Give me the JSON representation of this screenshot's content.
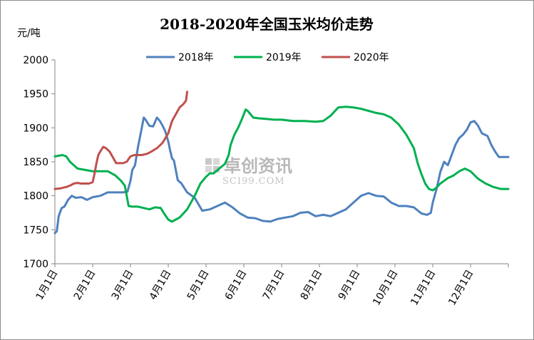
{
  "chart_data": {
    "type": "line",
    "title": "2018-2020年全国玉米均价走势",
    "unit_label": "元/吨",
    "ylim": [
      1700,
      2000
    ],
    "yticks": [
      1700,
      1750,
      1800,
      1850,
      1900,
      1950,
      2000
    ],
    "xlim": [
      0,
      12
    ],
    "xtick_labels": [
      "1月1日",
      "2月1日",
      "3月1日",
      "4月1日",
      "5月1日",
      "6月1日",
      "7月1日",
      "8月1日",
      "9月1日",
      "10月1日",
      "11月1日",
      "12月1日"
    ],
    "legend_position": "top",
    "grid": false,
    "watermark": {
      "cn": "卓创资讯",
      "en": "SCI99.COM"
    },
    "series": [
      {
        "name": "2018年",
        "color": "#4f81bd",
        "x": [
          0,
          0.05,
          0.1,
          0.18,
          0.25,
          0.35,
          0.45,
          0.55,
          0.7,
          0.85,
          1.0,
          1.2,
          1.4,
          1.6,
          1.8,
          1.92,
          2.0,
          2.05,
          2.12,
          2.2,
          2.3,
          2.35,
          2.4,
          2.5,
          2.6,
          2.7,
          2.78,
          2.85,
          2.92,
          3.0,
          3.05,
          3.1,
          3.15,
          3.25,
          3.35,
          3.5,
          3.7,
          3.9,
          4.1,
          4.3,
          4.5,
          4.7,
          4.9,
          5.1,
          5.3,
          5.5,
          5.7,
          5.9,
          6.1,
          6.3,
          6.5,
          6.7,
          6.9,
          7.1,
          7.3,
          7.5,
          7.7,
          7.9,
          8.1,
          8.3,
          8.5,
          8.7,
          8.9,
          9.1,
          9.3,
          9.5,
          9.7,
          9.85,
          9.95,
          10.0,
          10.1,
          10.2,
          10.3,
          10.4,
          10.5,
          10.6,
          10.7,
          10.8,
          10.9,
          11.0,
          11.1,
          11.2,
          11.3,
          11.45,
          11.55,
          11.65,
          11.75,
          11.85,
          11.92,
          12.0
        ],
        "values": [
          1745,
          1748,
          1770,
          1782,
          1784,
          1794,
          1800,
          1797,
          1798,
          1794,
          1798,
          1800,
          1805,
          1805,
          1805,
          1806,
          1822,
          1838,
          1845,
          1872,
          1900,
          1915,
          1912,
          1903,
          1902,
          1915,
          1910,
          1903,
          1895,
          1880,
          1867,
          1855,
          1852,
          1823,
          1818,
          1805,
          1797,
          1778,
          1780,
          1785,
          1790,
          1783,
          1774,
          1768,
          1767,
          1763,
          1762,
          1766,
          1768,
          1770,
          1775,
          1776,
          1770,
          1772,
          1770,
          1775,
          1780,
          1790,
          1800,
          1804,
          1800,
          1799,
          1790,
          1785,
          1785,
          1783,
          1774,
          1772,
          1775,
          1790,
          1810,
          1835,
          1850,
          1845,
          1860,
          1875,
          1885,
          1890,
          1897,
          1908,
          1910,
          1903,
          1892,
          1888,
          1875,
          1865,
          1857,
          1857,
          1857,
          1857
        ]
      },
      {
        "name": "2019年",
        "color": "#00b050",
        "x": [
          0,
          0.2,
          0.3,
          0.4,
          0.5,
          0.6,
          0.8,
          1.0,
          1.2,
          1.4,
          1.6,
          1.75,
          1.85,
          1.95,
          2.05,
          2.2,
          2.35,
          2.5,
          2.65,
          2.8,
          2.9,
          3.0,
          3.1,
          3.2,
          3.3,
          3.5,
          3.7,
          3.85,
          4.0,
          4.1,
          4.2,
          4.35,
          4.5,
          4.6,
          4.65,
          4.75,
          4.85,
          4.95,
          5.05,
          5.1,
          5.25,
          5.4,
          5.6,
          5.8,
          6.0,
          6.3,
          6.6,
          6.9,
          7.1,
          7.3,
          7.5,
          7.7,
          7.9,
          8.1,
          8.3,
          8.5,
          8.7,
          8.9,
          9.1,
          9.3,
          9.5,
          9.6,
          9.7,
          9.8,
          9.9,
          10.0,
          10.1,
          10.2,
          10.3,
          10.4,
          10.55,
          10.7,
          10.85,
          11.0,
          11.2,
          11.4,
          11.6,
          11.8,
          12.0
        ],
        "values": [
          1858,
          1860,
          1858,
          1850,
          1845,
          1840,
          1838,
          1836,
          1836,
          1836,
          1830,
          1822,
          1815,
          1785,
          1784,
          1784,
          1782,
          1780,
          1783,
          1782,
          1773,
          1765,
          1762,
          1765,
          1768,
          1780,
          1800,
          1818,
          1828,
          1833,
          1833,
          1840,
          1847,
          1860,
          1875,
          1890,
          1900,
          1913,
          1927,
          1925,
          1915,
          1914,
          1913,
          1912,
          1912,
          1910,
          1910,
          1909,
          1910,
          1918,
          1930,
          1931,
          1930,
          1928,
          1925,
          1922,
          1920,
          1915,
          1905,
          1890,
          1870,
          1848,
          1832,
          1818,
          1810,
          1808,
          1812,
          1818,
          1822,
          1826,
          1830,
          1836,
          1840,
          1836,
          1825,
          1818,
          1813,
          1810,
          1810
        ]
      },
      {
        "name": "2020年",
        "color": "#c0504d",
        "x": [
          0,
          0.15,
          0.3,
          0.4,
          0.5,
          0.6,
          0.7,
          0.8,
          0.9,
          1.0,
          1.05,
          1.1,
          1.15,
          1.2,
          1.28,
          1.35,
          1.45,
          1.55,
          1.62,
          1.7,
          1.8,
          1.9,
          2.0,
          2.1,
          2.2,
          2.3,
          2.45,
          2.55,
          2.7,
          2.85,
          3.0,
          3.1,
          3.2,
          3.3,
          3.4,
          3.47,
          3.5
        ],
        "values": [
          1810,
          1811,
          1813,
          1815,
          1818,
          1819,
          1818,
          1818,
          1818,
          1820,
          1833,
          1848,
          1860,
          1865,
          1872,
          1870,
          1865,
          1855,
          1848,
          1848,
          1848,
          1850,
          1858,
          1860,
          1860,
          1860,
          1862,
          1865,
          1870,
          1878,
          1892,
          1910,
          1920,
          1930,
          1935,
          1940,
          1953
        ]
      }
    ]
  }
}
